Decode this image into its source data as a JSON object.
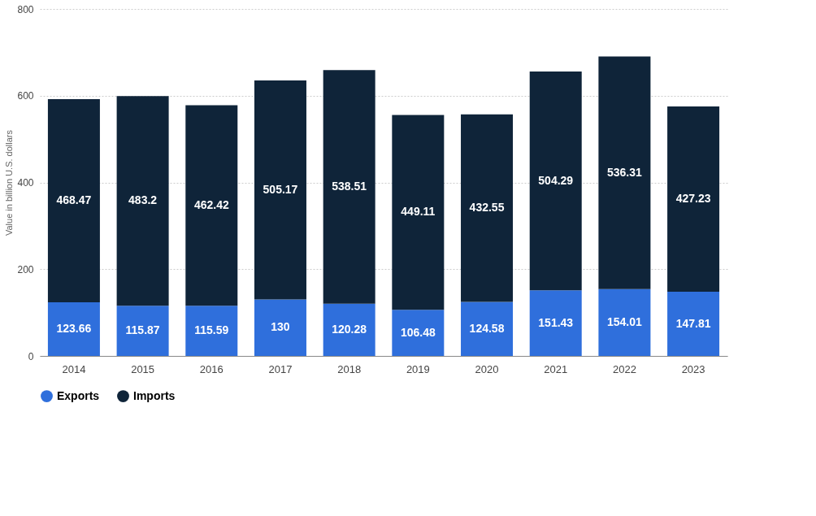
{
  "chart_data": {
    "type": "bar",
    "stacked": true,
    "ylabel": "Value in billion U.S. dollars",
    "categories": [
      "2014",
      "2015",
      "2016",
      "2017",
      "2018",
      "2019",
      "2020",
      "2021",
      "2022",
      "2023"
    ],
    "series": [
      {
        "name": "Exports",
        "color": "#2f6fdc",
        "values": [
          123.66,
          115.87,
          115.59,
          130,
          120.28,
          106.48,
          124.58,
          151.43,
          154.01,
          147.81
        ]
      },
      {
        "name": "Imports",
        "color": "#0f2439",
        "values": [
          468.47,
          483.2,
          462.42,
          505.17,
          538.51,
          449.11,
          432.55,
          504.29,
          536.31,
          427.23
        ]
      }
    ],
    "ylim": [
      0,
      800
    ],
    "yticks": [
      0,
      200,
      400,
      600,
      800
    ],
    "grid": "y",
    "legend": "bottom",
    "data_labels": true
  }
}
